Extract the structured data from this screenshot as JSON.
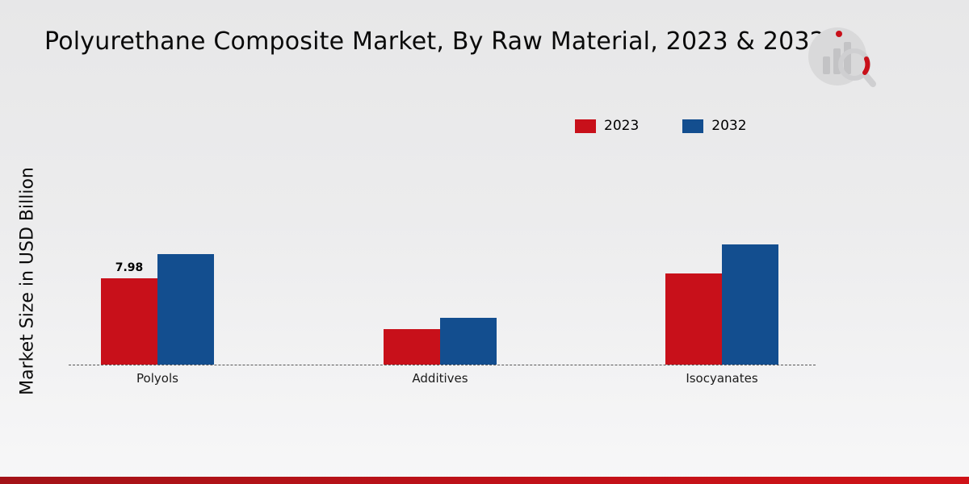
{
  "title": "Polyurethane Composite Market, By Raw Material, 2023 & 2032",
  "ylabel": "Market Size in USD Billion",
  "legend": [
    {
      "label": "2023",
      "color": "#c8101a"
    },
    {
      "label": "2032",
      "color": "#134e8f"
    }
  ],
  "colors": {
    "series_2023": "#c8101a",
    "series_2032": "#134e8f",
    "bottom_strip": "#c11119",
    "background": "#ececed"
  },
  "chart_data": {
    "type": "bar",
    "title": "Polyurethane Composite Market, By Raw Material, 2023 & 2032",
    "xlabel": "",
    "ylabel": "Market Size in USD Billion",
    "categories": [
      "Polyols",
      "Additives",
      "Isocyanates"
    ],
    "series": [
      {
        "name": "2023",
        "color": "#c8101a",
        "values": [
          7.98,
          3.3,
          8.4
        ]
      },
      {
        "name": "2032",
        "color": "#134e8f",
        "values": [
          10.2,
          4.3,
          11.1
        ]
      }
    ],
    "value_labels": [
      [
        "7.98",
        "",
        ""
      ],
      [
        "",
        "",
        ""
      ]
    ],
    "ylim": [
      0,
      12
    ],
    "grid": false,
    "legend_position": "top-right",
    "baseline_style": "dashed",
    "y_axis_ticks_visible": false
  }
}
